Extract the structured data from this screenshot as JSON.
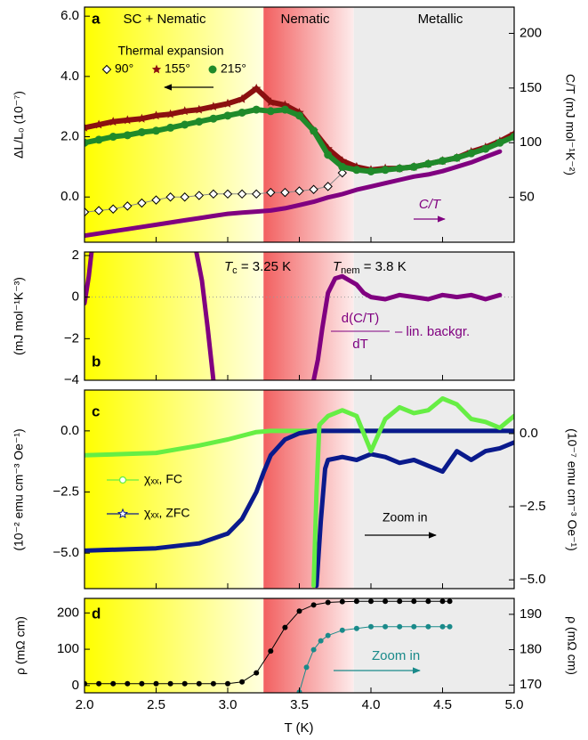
{
  "chart_data": [
    {
      "type": "scatter",
      "panel": "a",
      "regions": [
        {
          "label": "SC + Nematic",
          "from": 2.0,
          "to": 3.25,
          "color": "#ffff00",
          "fade": true
        },
        {
          "label": "Nematic",
          "from": 3.25,
          "to": 3.88,
          "color": "#f26060",
          "fade": true
        },
        {
          "label": "Metallic",
          "from": 3.88,
          "to": 5.0,
          "color": "#ececec",
          "fade": false
        }
      ],
      "ylabel": "ΔL/L₀ (10⁻⁷)",
      "y2label": "C/T (mJ mol⁻¹K⁻²)",
      "legend_title": "Thermal expansion",
      "annotation": "C/T",
      "ylim": [
        -1.5,
        6.3
      ],
      "yticks": [
        {
          "value": 0,
          "label": "0.0"
        },
        {
          "value": 2,
          "label": "2.0"
        },
        {
          "value": 4,
          "label": "4.0"
        },
        {
          "value": 6,
          "label": "6.0"
        }
      ],
      "y2lim": [
        9,
        224
      ],
      "y2ticks": [
        50,
        100,
        150,
        200
      ],
      "series": [
        {
          "name": "90°",
          "color": "#ffffff",
          "style": "diamond",
          "x": [
            2.0,
            2.1,
            2.2,
            2.3,
            2.4,
            2.5,
            2.6,
            2.7,
            2.8,
            2.9,
            3.0,
            3.1,
            3.2,
            3.3,
            3.4,
            3.5,
            3.6,
            3.7,
            3.8
          ],
          "values": [
            -0.5,
            -0.45,
            -0.4,
            -0.3,
            -0.2,
            -0.1,
            0,
            0,
            0.05,
            0.1,
            0.1,
            0.1,
            0.1,
            0.15,
            0.15,
            0.2,
            0.25,
            0.35,
            0.8
          ]
        },
        {
          "name": "155°",
          "color": "#8b1010",
          "style": "star",
          "x": [
            2.0,
            2.1,
            2.2,
            2.3,
            2.4,
            2.5,
            2.6,
            2.7,
            2.8,
            2.9,
            3.0,
            3.1,
            3.2,
            3.3,
            3.4,
            3.5,
            3.6,
            3.7,
            3.8,
            3.9,
            4.0,
            4.1,
            4.2,
            4.3,
            4.4,
            4.5,
            4.6,
            4.7,
            4.8,
            4.9,
            5.0
          ],
          "values": [
            2.3,
            2.4,
            2.5,
            2.55,
            2.6,
            2.7,
            2.75,
            2.85,
            2.9,
            3.0,
            3.1,
            3.25,
            3.6,
            3.15,
            3.05,
            2.8,
            2.2,
            1.6,
            1.2,
            1.0,
            0.9,
            0.95,
            0.95,
            1.0,
            1.1,
            1.2,
            1.3,
            1.5,
            1.65,
            1.85,
            2.1
          ]
        },
        {
          "name": "215°",
          "color": "#1f8a2a",
          "style": "circle",
          "x": [
            2.0,
            2.1,
            2.2,
            2.3,
            2.4,
            2.5,
            2.6,
            2.7,
            2.8,
            2.9,
            3.0,
            3.1,
            3.2,
            3.3,
            3.4,
            3.5,
            3.6,
            3.7,
            3.8,
            3.9,
            4.0,
            4.1,
            4.2,
            4.3,
            4.4,
            4.5,
            4.6,
            4.7,
            4.8,
            4.9,
            5.0
          ],
          "values": [
            1.8,
            1.9,
            2.0,
            2.05,
            2.15,
            2.2,
            2.3,
            2.4,
            2.5,
            2.6,
            2.7,
            2.8,
            2.9,
            2.85,
            2.9,
            2.7,
            2.2,
            1.4,
            1.0,
            0.9,
            0.85,
            0.9,
            0.95,
            1.0,
            1.1,
            1.2,
            1.3,
            1.45,
            1.6,
            1.8,
            2.0
          ]
        },
        {
          "color": "#800080",
          "style": "thick-line",
          "axis": "y2",
          "x": [
            2.0,
            2.1,
            2.2,
            2.3,
            2.4,
            2.5,
            2.6,
            2.7,
            2.8,
            2.9,
            3.0,
            3.1,
            3.2,
            3.3,
            3.4,
            3.5,
            3.6,
            3.7,
            3.8,
            3.9,
            4.0,
            4.1,
            4.2,
            4.3,
            4.4,
            4.5,
            4.6,
            4.7,
            4.8,
            4.9
          ],
          "values": [
            15,
            17,
            19,
            21,
            23,
            25,
            27,
            29,
            31,
            33,
            35,
            36,
            37,
            38,
            40,
            43,
            46,
            50,
            53,
            57,
            60,
            63,
            66,
            69,
            71,
            74,
            78,
            82,
            87,
            92
          ]
        }
      ]
    },
    {
      "type": "line",
      "panel": "b",
      "ylabel": "(mJ mol⁻¹K⁻³)",
      "zero_line": true,
      "tc": {
        "symbol": "T",
        "subscript": "c",
        "rest": " = 3.25 K"
      },
      "tnem": {
        "symbol": "T",
        "subscript": "nem",
        "rest": " = 3.8 K"
      },
      "formula": {
        "numerator": "d(C/T)",
        "denominator": "dT",
        "suffix": "– lin. backgr."
      },
      "ylim": [
        -4,
        2.17
      ],
      "yticks": [
        {
          "value": -4,
          "label": "−4"
        },
        {
          "value": -2,
          "label": "−2"
        },
        0,
        2
      ],
      "series": [
        {
          "color": "#800080",
          "style": "thick-line",
          "x": [
            2.0,
            2.03,
            2.05,
            2.4,
            2.78,
            2.82,
            2.86,
            2.9,
            3.3,
            3.6,
            3.63,
            3.66,
            3.7,
            3.75,
            3.8,
            3.85,
            3.9,
            3.95,
            4.0,
            4.1,
            4.2,
            4.3,
            4.4,
            4.5,
            4.6,
            4.7,
            4.8,
            4.9
          ],
          "values": [
            -0.3,
            1.0,
            2.2,
            null,
            2.2,
            0.8,
            -1.5,
            -4,
            null,
            -4,
            -3.0,
            -1.5,
            0.2,
            0.9,
            1.0,
            0.8,
            0.6,
            0.2,
            0.0,
            -0.1,
            0.1,
            0.0,
            -0.1,
            0.1,
            0.0,
            0.1,
            -0.1,
            0.1
          ]
        }
      ]
    },
    {
      "type": "line",
      "panel": "c",
      "ylabel": "(10⁻² emu cm⁻³ Oe⁻¹)",
      "y2label": "(10⁻⁷ emu cm⁻³ Oe⁻¹)",
      "annotation": "Zoom in",
      "ylim": [
        -6.45,
        1.67
      ],
      "yticks": [
        {
          "value": -5,
          "label": "−5.0"
        },
        {
          "value": -2.5,
          "label": "−2.5"
        },
        {
          "value": 0,
          "label": "0.0"
        }
      ],
      "y2lim": [
        -5.3,
        1.49
      ],
      "y2ticks": [
        {
          "value": -5,
          "label": "−5.0"
        },
        {
          "value": -2.5,
          "label": "−2.5"
        },
        {
          "value": 0,
          "label": "0.0"
        }
      ],
      "series": [
        {
          "name": "χₓₓ, FC",
          "color": "#66ee44",
          "style": "thick-line",
          "x": [
            2.0,
            2.5,
            2.8,
            3.0,
            3.2,
            3.3,
            3.6,
            4.0,
            4.5,
            5.0
          ],
          "values": [
            -1.0,
            -0.9,
            -0.6,
            -0.35,
            -0.05,
            0,
            0,
            0,
            0,
            0
          ]
        },
        {
          "name": "χₓₓ, ZFC",
          "color": "#0a1a8c",
          "style": "thick-line",
          "x": [
            2.0,
            2.5,
            2.8,
            3.0,
            3.1,
            3.2,
            3.25,
            3.3,
            3.4,
            3.5,
            3.6,
            4.0,
            4.5,
            5.0
          ],
          "values": [
            -4.9,
            -4.8,
            -4.6,
            -4.2,
            -3.6,
            -2.5,
            -1.7,
            -1.0,
            -0.35,
            -0.1,
            0,
            0,
            0,
            0
          ]
        },
        {
          "color": "#0a1a8c",
          "style": "thick-line",
          "axis": "y2",
          "x": [
            3.62,
            3.65,
            3.68,
            3.7,
            3.8,
            3.9,
            4.0,
            4.1,
            4.2,
            4.3,
            4.4,
            4.5,
            4.6,
            4.7,
            4.8,
            4.9,
            5.0
          ],
          "values": [
            -5.2,
            -3,
            -1.2,
            -0.9,
            -0.8,
            -0.9,
            -0.7,
            -0.8,
            -1.0,
            -0.9,
            -1.1,
            -1.3,
            -0.6,
            -0.9,
            -0.6,
            -0.5,
            -0.3
          ]
        },
        {
          "color": "#66ee44",
          "style": "thick-line",
          "axis": "y2",
          "x": [
            3.6,
            3.62,
            3.64,
            3.7,
            3.8,
            3.9,
            4.0,
            4.1,
            4.2,
            4.3,
            4.4,
            4.5,
            4.6,
            4.7,
            4.8,
            4.9,
            5.0
          ],
          "values": [
            -5.2,
            -2,
            0.3,
            0.6,
            0.8,
            0.6,
            -0.6,
            0.5,
            0.9,
            0.7,
            0.8,
            1.2,
            1.0,
            0.5,
            0.4,
            0.2,
            0.6
          ]
        }
      ]
    },
    {
      "type": "line",
      "panel": "d",
      "ylabel": "ρ (mΩ cm)",
      "y2label": "ρ (mΩ cm)",
      "annotation": "Zoom in",
      "xlabel": "T (K)",
      "xlim": [
        2.0,
        5.0
      ],
      "xticks": [
        {
          "value": 2.0,
          "label": "2.0"
        },
        {
          "value": 2.5,
          "label": "2.5"
        },
        {
          "value": 3.0,
          "label": "3.0"
        },
        {
          "value": 3.5,
          "label": "3.5"
        },
        {
          "value": 4.0,
          "label": "4.0"
        },
        {
          "value": 4.5,
          "label": "4.5"
        },
        {
          "value": 5.0,
          "label": "5.0"
        }
      ],
      "ylim": [
        -20,
        240
      ],
      "yticks": [
        0,
        100,
        200
      ],
      "y2lim": [
        167.8,
        194.5
      ],
      "y2ticks": [
        170,
        180,
        190
      ],
      "series": [
        {
          "color": "#000000",
          "style": "line-dot",
          "x": [
            2.0,
            2.1,
            2.2,
            2.3,
            2.4,
            2.5,
            2.6,
            2.7,
            2.8,
            2.9,
            3.0,
            3.1,
            3.2,
            3.3,
            3.4,
            3.5,
            3.6,
            3.7,
            3.8,
            3.9,
            4.0,
            4.1,
            4.2,
            4.3,
            4.4,
            4.5,
            4.55
          ],
          "values": [
            5,
            5,
            5,
            5,
            5,
            5,
            5,
            5,
            5,
            5,
            5,
            10,
            35,
            95,
            160,
            205,
            222,
            229,
            231,
            232,
            232,
            232,
            232,
            232,
            232,
            232,
            232
          ]
        },
        {
          "color": "#1a8a8a",
          "style": "line-dot",
          "axis": "y2",
          "x": [
            3.5,
            3.55,
            3.6,
            3.65,
            3.7,
            3.8,
            3.9,
            4.0,
            4.1,
            4.2,
            4.3,
            4.4,
            4.5,
            4.55
          ],
          "values": [
            168,
            175,
            180,
            182.5,
            184,
            185.5,
            186,
            186.5,
            186.5,
            186.5,
            186.5,
            186.5,
            186.5,
            186.5
          ]
        }
      ]
    }
  ]
}
